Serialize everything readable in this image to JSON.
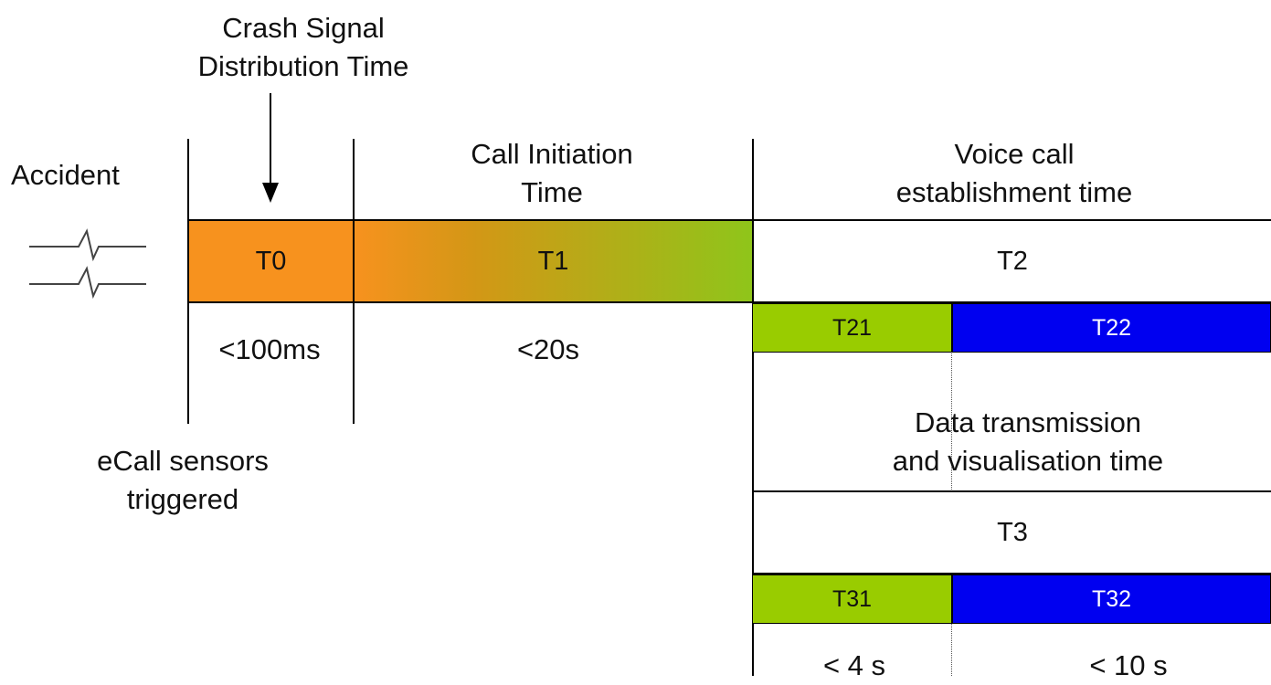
{
  "labels": {
    "crash_signal": "Crash Signal",
    "distribution_time": "Distribution Time",
    "accident": "Accident",
    "call_initiation": "Call Initiation",
    "call_initiation_time": "Time",
    "voice_call": "Voice call",
    "voice_call_time": "establishment time",
    "data_transmission": "Data transmission",
    "data_visualisation": "and visualisation time",
    "ecall_sensors": "eCall sensors",
    "triggered": "triggered"
  },
  "bars": {
    "t0": "T0",
    "t1": "T1",
    "t2": "T2",
    "t21": "T21",
    "t22": "T22",
    "t3": "T3",
    "t31": "T31",
    "t32": "T32"
  },
  "durations": {
    "t0": "<100ms",
    "t1": "<20s",
    "t31": "< 4 s",
    "t32": "< 10 s"
  },
  "colors": {
    "orange": "#f7921e",
    "green": "#99cc00",
    "blue": "#0000f0"
  },
  "icons": {
    "accident_signal": "signal-spike-icon",
    "arrow": "arrow-down-icon"
  }
}
